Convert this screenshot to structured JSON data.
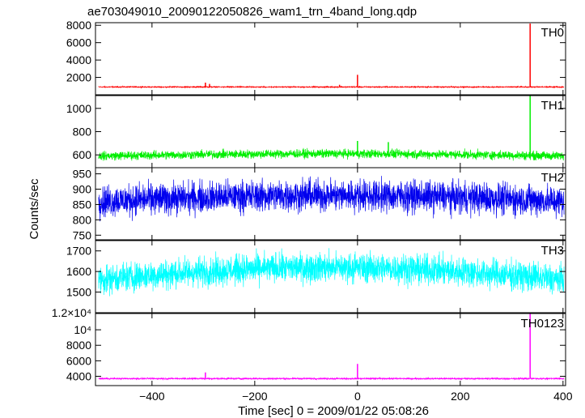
{
  "chart_data": {
    "type": "line",
    "title": "ae703049010_20090122050826_wam1_trn_4band_long.qdp",
    "xlabel": "Time [sec] 0 = 2009/01/22 05:08:26",
    "ylabel": "Counts/sec",
    "xlim": [
      -510,
      405
    ],
    "x_ticks": [
      -400,
      -200,
      0,
      200,
      400
    ],
    "x_tick_labels": [
      "−400",
      "−200",
      "0",
      "200",
      "400"
    ],
    "panels": [
      {
        "name": "TH0",
        "color": "#ff0000",
        "ylim": [
          0,
          8300
        ],
        "y_ticks": [
          2000,
          4000,
          6000,
          8000
        ],
        "y_tick_labels": [
          "2000",
          "4000",
          "6000",
          "8000"
        ],
        "baseline": 900,
        "noise_amplitude": 90,
        "trend": 0,
        "spikes": [
          {
            "x": -296,
            "y": 1400
          },
          {
            "x": -288,
            "y": 1250
          },
          {
            "x": -35,
            "y": 1150
          },
          {
            "x": 0,
            "y": 2300
          },
          {
            "x": 336,
            "y": 8200
          }
        ]
      },
      {
        "name": "TH1",
        "color": "#00ee00",
        "ylim": [
          490,
          1110
        ],
        "y_ticks": [
          600,
          800,
          1000
        ],
        "y_tick_labels": [
          "600",
          "800",
          "1000"
        ],
        "baseline": 590,
        "noise_amplitude": 55,
        "trend": 20,
        "spikes": [
          {
            "x": 0,
            "y": 720
          },
          {
            "x": 60,
            "y": 710
          },
          {
            "x": 336,
            "y": 1110
          }
        ]
      },
      {
        "name": "TH2",
        "color": "#0000ee",
        "ylim": [
          735,
          970
        ],
        "y_ticks": [
          750,
          800,
          850,
          900,
          950
        ],
        "y_tick_labels": [
          "750",
          "800",
          "850",
          "900",
          "950"
        ],
        "baseline": 860,
        "noise_amplitude": 75,
        "trend": 20,
        "spikes": []
      },
      {
        "name": "TH3",
        "color": "#00ffff",
        "ylim": [
          1400,
          1750
        ],
        "y_ticks": [
          1500,
          1600,
          1700
        ],
        "y_tick_labels": [
          "1500",
          "1600",
          "1700"
        ],
        "baseline": 1560,
        "noise_amplitude": 105,
        "trend": 60,
        "spikes": []
      },
      {
        "name": "TH0123",
        "color": "#ff00ff",
        "ylim": [
          2800,
          12100
        ],
        "y_ticks": [
          4000,
          6000,
          8000,
          10000
        ],
        "y_tick_labels": [
          "4000",
          "6000",
          "8000",
          "10⁴"
        ],
        "top_label": "1.2×10⁴",
        "baseline": 3700,
        "noise_amplitude": 150,
        "trend": 0,
        "spikes": [
          {
            "x": -296,
            "y": 4500
          },
          {
            "x": 0,
            "y": 5600
          },
          {
            "x": 336,
            "y": 12100
          }
        ]
      }
    ]
  }
}
